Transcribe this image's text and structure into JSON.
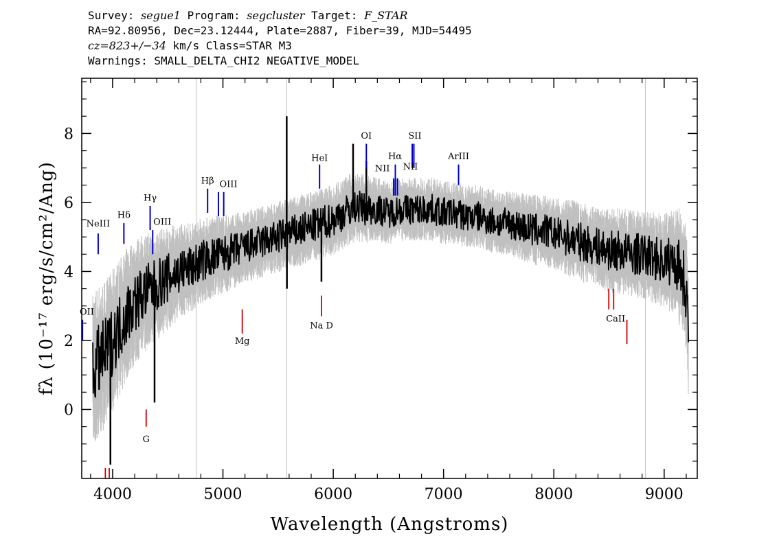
{
  "header": {
    "survey_label": "Survey:",
    "survey": "segue1",
    "program_label": "Program:",
    "program": "segcluster",
    "target_label": "Target:",
    "target": "F_STAR",
    "line2": "RA=92.80956, Dec=23.12444, Plate=2887, Fiber=39, MJD=54495",
    "cz_label": "cz=",
    "cz": "823+/−34",
    "cz_unit_class": " km/s Class=STAR M3",
    "warnings": "Warnings: SMALL_DELTA_CHI2 NEGATIVE_MODEL"
  },
  "chart_data": {
    "type": "line",
    "xlabel": "Wavelength (Angstroms)",
    "ylabel": "fλ (10⁻¹⁷ erg/s/cm²/Ang)",
    "xlim": [
      3720,
      9300
    ],
    "ylim": [
      -2.0,
      9.6
    ],
    "x_ticks": [
      4000,
      5000,
      6000,
      7000,
      8000,
      9000
    ],
    "y_ticks": [
      0,
      2,
      4,
      6,
      8
    ],
    "colors": {
      "flux": "#000000",
      "error": "#c0c0c0",
      "emission": "#0000cc",
      "absorption": "#cc0000"
    },
    "series": [
      {
        "name": "flux",
        "x": [
          3820,
          3850,
          3900,
          3950,
          4000,
          4050,
          4100,
          4150,
          4200,
          4300,
          4400,
          4500,
          4600,
          4700,
          4800,
          4900,
          5000,
          5100,
          5200,
          5300,
          5400,
          5500,
          5600,
          5700,
          5800,
          5900,
          6000,
          6100,
          6200,
          6300,
          6400,
          6500,
          6600,
          6700,
          6800,
          6900,
          7000,
          7100,
          7200,
          7300,
          7400,
          7500,
          7600,
          7700,
          7800,
          7900,
          8000,
          8100,
          8200,
          8300,
          8400,
          8500,
          8600,
          8700,
          8800,
          8900,
          9000,
          9100,
          9150,
          9200,
          9220
        ],
        "y": [
          1.1,
          1.3,
          1.5,
          1.7,
          2.0,
          2.3,
          2.6,
          2.9,
          3.1,
          3.4,
          3.6,
          3.8,
          4.0,
          4.1,
          4.3,
          4.4,
          4.5,
          4.6,
          4.7,
          4.8,
          4.9,
          5.0,
          5.1,
          5.2,
          5.3,
          5.4,
          5.5,
          5.7,
          5.9,
          5.8,
          5.8,
          5.7,
          5.8,
          5.8,
          5.8,
          5.8,
          5.7,
          5.7,
          5.6,
          5.6,
          5.5,
          5.4,
          5.4,
          5.3,
          5.2,
          5.2,
          5.1,
          5.0,
          4.9,
          4.8,
          4.7,
          4.6,
          4.6,
          4.5,
          4.5,
          4.4,
          4.3,
          4.3,
          4.1,
          3.5,
          2.2
        ]
      },
      {
        "name": "error",
        "x": [
          3820,
          4000,
          4200,
          4400,
          4600,
          4800,
          5000,
          5200,
          5400,
          5600,
          5800,
          6000,
          6200,
          6400,
          6600,
          6800,
          7000,
          7200,
          7400,
          7600,
          7800,
          8000,
          8200,
          8400,
          8600,
          8800,
          9000,
          9200
        ],
        "y": [
          1.0,
          0.9,
          0.8,
          0.7,
          0.6,
          0.55,
          0.5,
          0.45,
          0.45,
          0.45,
          0.45,
          0.45,
          0.45,
          0.4,
          0.4,
          0.4,
          0.4,
          0.4,
          0.4,
          0.4,
          0.45,
          0.45,
          0.5,
          0.5,
          0.55,
          0.55,
          0.6,
          0.8
        ]
      }
    ],
    "spikes": [
      {
        "x": 5578,
        "y": 8.5
      },
      {
        "x": 5580,
        "y": 3.5
      },
      {
        "x": 6180,
        "y": 7.7
      },
      {
        "x": 6300,
        "y": 7.2
      },
      {
        "x": 3980,
        "y": -1.6
      },
      {
        "x": 4380,
        "y": 0.2
      },
      {
        "x": 5893,
        "y": 3.7
      }
    ],
    "sky_lines": [
      4760,
      5578,
      8830
    ],
    "emission_lines": [
      {
        "label": "NeIII",
        "x": 3869,
        "y_bottom": 4.5,
        "y_top": 5.1
      },
      {
        "label": "Hδ",
        "x": 4102,
        "y_bottom": 4.8,
        "y_top": 5.4
      },
      {
        "label": "Hγ",
        "x": 4340,
        "y_bottom": 5.2,
        "y_top": 5.9
      },
      {
        "label": "OIII",
        "x": 4363,
        "y_bottom": 4.5,
        "y_top": 5.2
      },
      {
        "label": "Hβ",
        "x": 4861,
        "y_bottom": 5.7,
        "y_top": 6.4
      },
      {
        "label": "OIII",
        "x": 4959,
        "y_bottom": 5.6,
        "y_top": 6.3
      },
      {
        "label": "OIII",
        "x": 5007,
        "y_bottom": 5.6,
        "y_top": 6.3
      },
      {
        "label": "HeI",
        "x": 5876,
        "y_bottom": 6.4,
        "y_top": 7.1
      },
      {
        "label": "OI",
        "x": 6300,
        "y_bottom": 7.0,
        "y_top": 7.7
      },
      {
        "label": "NII",
        "x": 6548,
        "y_bottom": 6.2,
        "y_top": 6.7
      },
      {
        "label": "Hα",
        "x": 6563,
        "y_bottom": 6.2,
        "y_top": 7.1
      },
      {
        "label": "NII",
        "x": 6583,
        "y_bottom": 6.2,
        "y_top": 6.7
      },
      {
        "label": "SII",
        "x": 6716,
        "y_bottom": 7.0,
        "y_top": 7.7
      },
      {
        "label": "SII",
        "x": 6731,
        "y_bottom": 7.0,
        "y_top": 7.7
      },
      {
        "label": "ArIII",
        "x": 7136,
        "y_bottom": 6.5,
        "y_top": 7.1
      },
      {
        "label": "OII",
        "x": 3727,
        "y_bottom": 2.0,
        "y_top": 2.6
      }
    ],
    "absorption_lines": [
      {
        "label": "G",
        "x": 4304,
        "y_bottom": -0.5,
        "y_top": 0.0
      },
      {
        "label": "Mg",
        "x": 5175,
        "y_bottom": 2.2,
        "y_top": 2.9
      },
      {
        "label": "Na D",
        "x": 5894,
        "y_bottom": 2.7,
        "y_top": 3.3
      },
      {
        "label": "CaII",
        "x": 8498,
        "y_bottom": 2.9,
        "y_top": 3.5
      },
      {
        "label": "CaII",
        "x": 8542,
        "y_bottom": 2.9,
        "y_top": 3.5
      },
      {
        "label": "CaII",
        "x": 8662,
        "y_bottom": 1.9,
        "y_top": 2.6
      },
      {
        "label": "CaII",
        "x": 3934,
        "y_bottom": -2.0,
        "y_top": -1.7
      },
      {
        "label": "CaII",
        "x": 3969,
        "y_bottom": -2.0,
        "y_top": -1.7
      }
    ],
    "line_label_text": {
      "NeIII": "NeIII",
      "Hdelta": "Hδ",
      "Hgamma": "Hγ",
      "OIII_a": "OIII",
      "Hbeta": "Hβ",
      "OIII_b": "OIII",
      "HeI": "HeI",
      "OI": "OI",
      "NII_a": "NII",
      "Halpha": "Hα",
      "NII_b": "NII",
      "SII": "SII",
      "ArIII": "ArIII",
      "OII": "OII",
      "G": "G",
      "Mg": "Mg",
      "NaD": "Na D",
      "CaII": "CaII"
    }
  }
}
